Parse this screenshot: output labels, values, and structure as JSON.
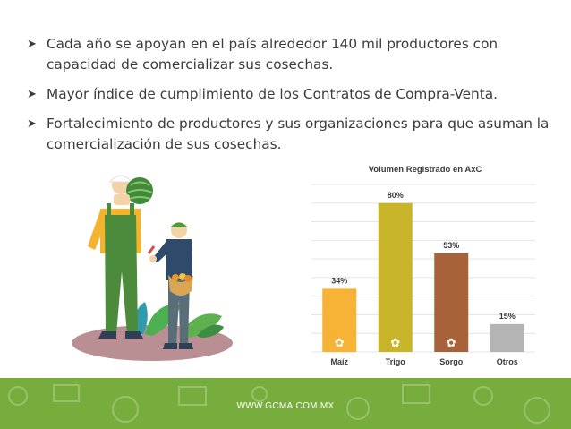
{
  "bullets": [
    {
      "marker": "➤",
      "text": "Cada año se apoyan en el país alrededor 140 mil productores con capacidad de comercializar sus cosechas."
    },
    {
      "marker": "➤",
      "text": "Mayor índice de cumplimiento de los Contratos de Compra-Venta."
    },
    {
      "marker": "➤",
      "text": "Fortalecimiento de productores y sus organizaciones para que asuman la comercialización de sus cosechas."
    }
  ],
  "chart_data": {
    "type": "bar",
    "title": "Volumen Registrado en AxC",
    "categories": [
      "Maíz",
      "Trigo",
      "Sorgo",
      "Otros"
    ],
    "values": [
      34,
      80,
      53,
      15
    ],
    "value_labels": [
      "34%",
      "80%",
      "53%",
      "15%"
    ],
    "colors": [
      "#f7b335",
      "#c9b52a",
      "#a8623a",
      "#b4b4b4"
    ],
    "icons": [
      "corn-icon",
      "wheat-icon",
      "sorghum-icon",
      ""
    ],
    "ylim": [
      0,
      90
    ],
    "grid": true,
    "xlabel": "",
    "ylabel": ""
  },
  "footer": {
    "url": "WWW.GCMA.COM.MX",
    "color": "#77ad3c"
  }
}
